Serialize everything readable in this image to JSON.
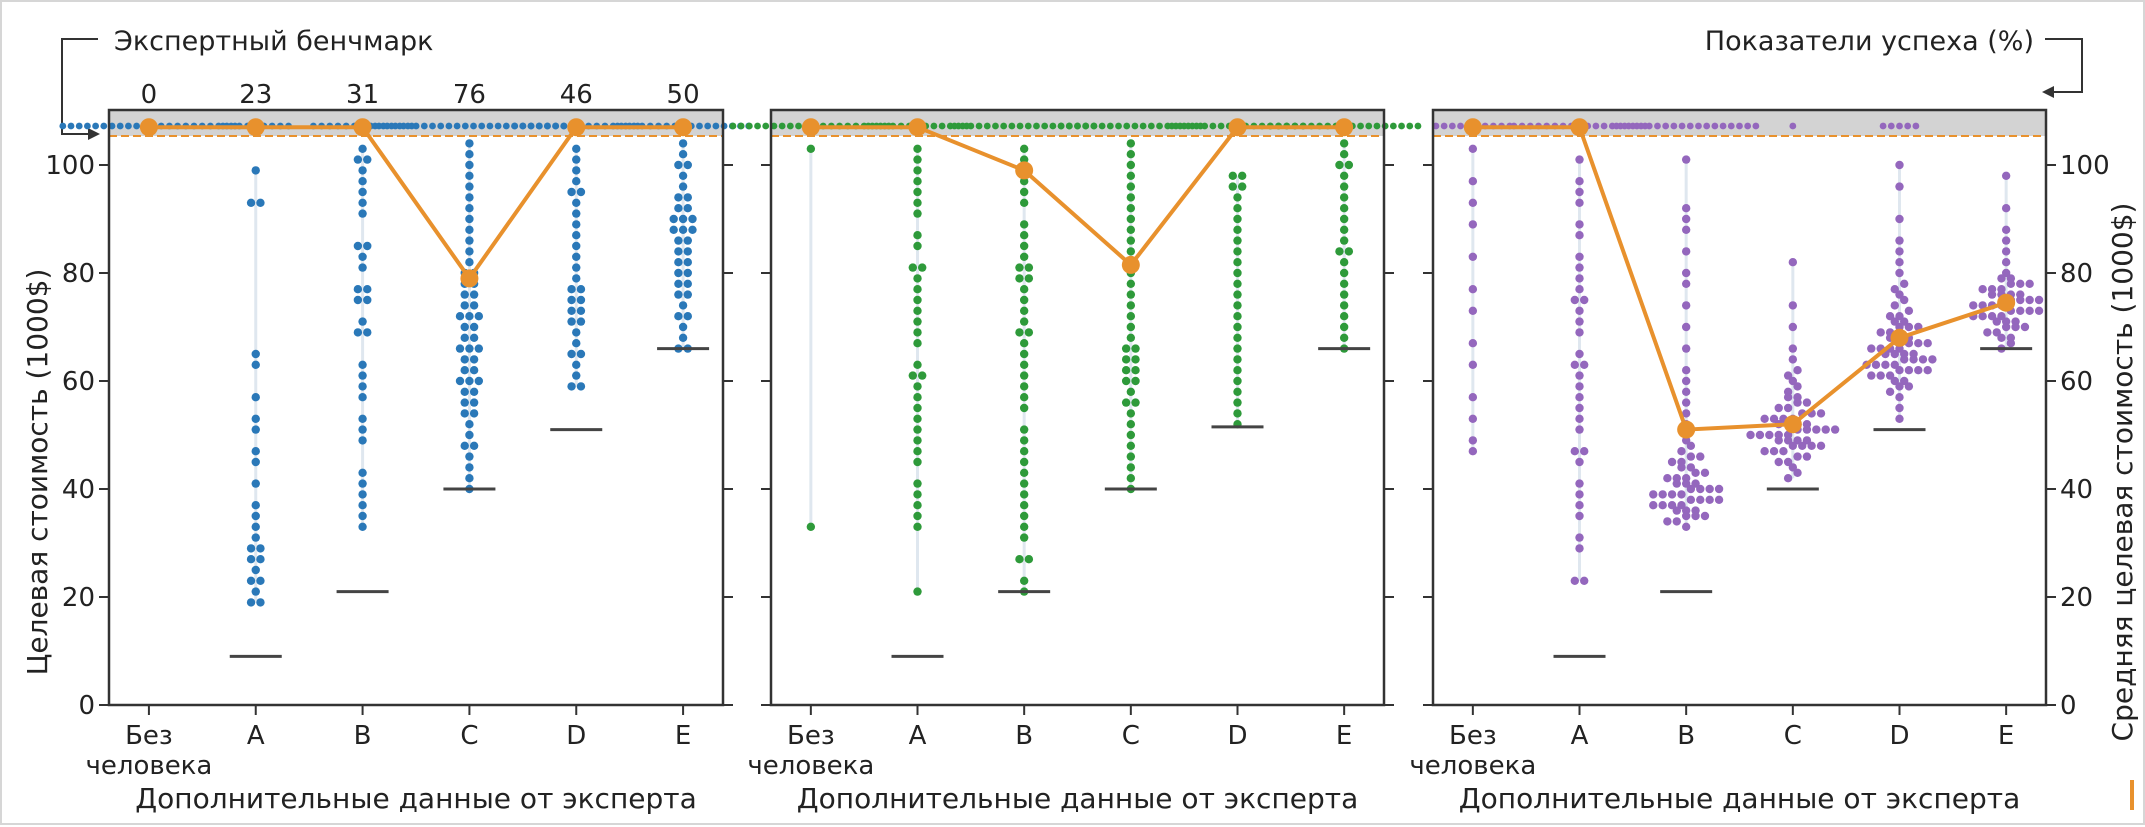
{
  "annotations": {
    "left": "Экспертный бенчмарк",
    "right": "Показатели успеха (%)"
  },
  "axes": {
    "ylabel_left": "Целевая стоимость (1000$)",
    "ylabel_right": "Средняя целевая стоимость (1000$)",
    "xlabel": "Дополнительные данные от эксперта",
    "y_ticks": [
      "0",
      "20",
      "40",
      "60",
      "80",
      "100"
    ]
  },
  "colors": {
    "mean_line": "#e8912d",
    "panel1_points": "#2a78b8",
    "panel2_points": "#2e9a3a",
    "panel3_points": "#9467bd",
    "benchmark_line": "#444444",
    "success_band": "#d3d3d3"
  },
  "chart_data": [
    {
      "type": "scatter",
      "categories": [
        "Без\nчеловека",
        "A",
        "B",
        "C",
        "D",
        "E"
      ],
      "category_lines": [
        [
          "Без",
          "человека"
        ],
        [
          "A"
        ],
        [
          "B"
        ],
        [
          "C"
        ],
        [
          "D"
        ],
        [
          "E"
        ]
      ],
      "xlabel": "Дополнительные данные от эксперта",
      "ylabel": "Целевая стоимость (1000$)",
      "ylim": [
        0,
        108
      ],
      "success_rates": [
        "0",
        "23",
        "31",
        "76",
        "46",
        "50"
      ],
      "mean_target_cost": [
        107,
        107,
        107,
        79,
        107,
        107
      ],
      "expert_benchmark": [
        null,
        9,
        21,
        40,
        51,
        66
      ],
      "points": [
        [],
        [
          19,
          19,
          21,
          23,
          23,
          25,
          27,
          27,
          29,
          29,
          31,
          33,
          35,
          37,
          41,
          45,
          47,
          51,
          53,
          57,
          63,
          65,
          93,
          93,
          99
        ],
        [
          33,
          35,
          37,
          39,
          41,
          43,
          49,
          51,
          53,
          57,
          59,
          61,
          63,
          69,
          69,
          71,
          75,
          75,
          77,
          77,
          81,
          83,
          85,
          85,
          91,
          93,
          95,
          97,
          99,
          101,
          101,
          103
        ],
        [
          40,
          42,
          44,
          46,
          48,
          48,
          50,
          52,
          54,
          54,
          56,
          56,
          58,
          58,
          60,
          60,
          60,
          62,
          62,
          64,
          64,
          66,
          66,
          66,
          68,
          68,
          70,
          70,
          72,
          72,
          72,
          74,
          74,
          76,
          76,
          78,
          78,
          80,
          80,
          82,
          84,
          86,
          88,
          90,
          92,
          94,
          96,
          98,
          100,
          102,
          104
        ],
        [
          59,
          59,
          61,
          63,
          65,
          65,
          67,
          69,
          71,
          71,
          73,
          73,
          75,
          75,
          77,
          77,
          79,
          81,
          83,
          85,
          87,
          89,
          91,
          93,
          95,
          95,
          97,
          99,
          101,
          103
        ],
        [
          66,
          66,
          68,
          70,
          72,
          72,
          74,
          76,
          76,
          78,
          78,
          80,
          80,
          82,
          82,
          84,
          84,
          86,
          86,
          88,
          88,
          88,
          90,
          90,
          90,
          92,
          92,
          94,
          94,
          96,
          98,
          100,
          100,
          102,
          104
        ]
      ],
      "success_points": [
        22,
        9,
        13,
        26,
        16,
        17
      ]
    },
    {
      "type": "scatter",
      "categories": [
        "Без\nчеловека",
        "A",
        "B",
        "C",
        "D",
        "E"
      ],
      "category_lines": [
        [
          "Без",
          "человека"
        ],
        [
          "A"
        ],
        [
          "B"
        ],
        [
          "C"
        ],
        [
          "D"
        ],
        [
          "E"
        ]
      ],
      "xlabel": "Дополнительные данные от эксперта",
      "ylim": [
        0,
        108
      ],
      "mean_target_cost": [
        107,
        107,
        99,
        81.5,
        107,
        107
      ],
      "expert_benchmark": [
        null,
        9,
        21,
        40,
        51.5,
        66
      ],
      "points": [
        [
          33,
          103
        ],
        [
          21,
          33,
          35,
          37,
          39,
          41,
          45,
          47,
          49,
          51,
          53,
          55,
          57,
          59,
          61,
          61,
          63,
          67,
          69,
          71,
          73,
          75,
          77,
          79,
          81,
          81,
          85,
          87,
          91,
          93,
          95,
          97,
          99,
          101,
          103
        ],
        [
          21,
          23,
          27,
          27,
          31,
          33,
          35,
          37,
          39,
          41,
          43,
          45,
          47,
          49,
          51,
          55,
          57,
          59,
          61,
          63,
          65,
          67,
          69,
          69,
          71,
          73,
          75,
          77,
          79,
          79,
          81,
          81,
          83,
          85,
          87,
          89,
          93,
          95,
          97,
          99,
          101,
          103
        ],
        [
          40,
          42,
          44,
          46,
          48,
          50,
          52,
          54,
          56,
          56,
          58,
          60,
          60,
          62,
          62,
          64,
          64,
          66,
          66,
          68,
          70,
          72,
          74,
          76,
          78,
          80,
          82,
          84,
          86,
          88,
          90,
          92,
          94,
          96,
          98,
          100,
          102,
          104
        ],
        [
          52,
          54,
          56,
          58,
          60,
          62,
          64,
          66,
          68,
          70,
          72,
          74,
          76,
          78,
          80,
          82,
          84,
          86,
          88,
          90,
          92,
          94,
          96,
          96,
          98,
          98
        ],
        [
          66,
          68,
          70,
          72,
          74,
          76,
          78,
          80,
          82,
          84,
          84,
          86,
          88,
          90,
          92,
          94,
          96,
          98,
          100,
          100,
          102,
          104
        ]
      ],
      "success_points": [
        20,
        13,
        18,
        18,
        17,
        19
      ]
    },
    {
      "type": "scatter",
      "categories": [
        "Без\nчеловека",
        "A",
        "B",
        "C",
        "D",
        "E"
      ],
      "category_lines": [
        [
          "Без",
          "человека"
        ],
        [
          "A"
        ],
        [
          "B"
        ],
        [
          "C"
        ],
        [
          "D"
        ],
        [
          "E"
        ]
      ],
      "xlabel": "Дополнительные данные от эксперта",
      "ylabel": "Средняя целевая стоимость (1000$)",
      "ylim": [
        0,
        108
      ],
      "mean_target_cost": [
        107,
        107,
        51,
        52,
        68,
        74.5
      ],
      "expert_benchmark": [
        null,
        9,
        21,
        40,
        51,
        66
      ],
      "points": [
        [
          47,
          49,
          53,
          57,
          63,
          67,
          73,
          77,
          83,
          89,
          93,
          97,
          103
        ],
        [
          23,
          23,
          29,
          31,
          35,
          37,
          39,
          41,
          45,
          47,
          47,
          51,
          53,
          55,
          57,
          59,
          61,
          63,
          63,
          65,
          69,
          71,
          73,
          75,
          75,
          77,
          79,
          81,
          83,
          87,
          89,
          93,
          95,
          97,
          101
        ],
        [
          33,
          34,
          34,
          35,
          35,
          35,
          36,
          36,
          36,
          37,
          37,
          37,
          37,
          38,
          38,
          38,
          38,
          39,
          39,
          39,
          39,
          40,
          40,
          40,
          40,
          41,
          41,
          41,
          42,
          42,
          42,
          43,
          43,
          44,
          44,
          45,
          45,
          46,
          46,
          47,
          48,
          49,
          50,
          52,
          54,
          56,
          58,
          60,
          62,
          66,
          70,
          74,
          78,
          80,
          84,
          88,
          90,
          92,
          101
        ],
        [
          42,
          43,
          44,
          45,
          45,
          46,
          46,
          47,
          47,
          47,
          48,
          48,
          48,
          48,
          49,
          49,
          49,
          49,
          50,
          50,
          50,
          50,
          50,
          51,
          51,
          51,
          51,
          51,
          52,
          52,
          52,
          52,
          53,
          53,
          53,
          53,
          54,
          54,
          54,
          55,
          55,
          56,
          56,
          57,
          57,
          58,
          59,
          60,
          61,
          62,
          64,
          66,
          70,
          74,
          82
        ],
        [
          53,
          55,
          57,
          58,
          59,
          59,
          60,
          60,
          61,
          61,
          61,
          62,
          62,
          62,
          62,
          63,
          63,
          63,
          63,
          64,
          64,
          64,
          64,
          65,
          65,
          65,
          65,
          66,
          66,
          66,
          66,
          67,
          67,
          67,
          68,
          68,
          68,
          69,
          69,
          70,
          70,
          70,
          71,
          71,
          72,
          72,
          73,
          74,
          75,
          76,
          77,
          78,
          80,
          82,
          84,
          86,
          90,
          96,
          100
        ],
        [
          66,
          67,
          68,
          68,
          69,
          69,
          70,
          70,
          70,
          71,
          71,
          71,
          72,
          72,
          72,
          72,
          73,
          73,
          73,
          73,
          74,
          74,
          74,
          74,
          75,
          75,
          75,
          75,
          76,
          76,
          76,
          76,
          77,
          77,
          77,
          78,
          78,
          78,
          79,
          79,
          80,
          82,
          84,
          86,
          88,
          92,
          98
        ]
      ],
      "success_points": [
        10,
        17,
        18,
        1,
        5,
        0
      ]
    }
  ]
}
